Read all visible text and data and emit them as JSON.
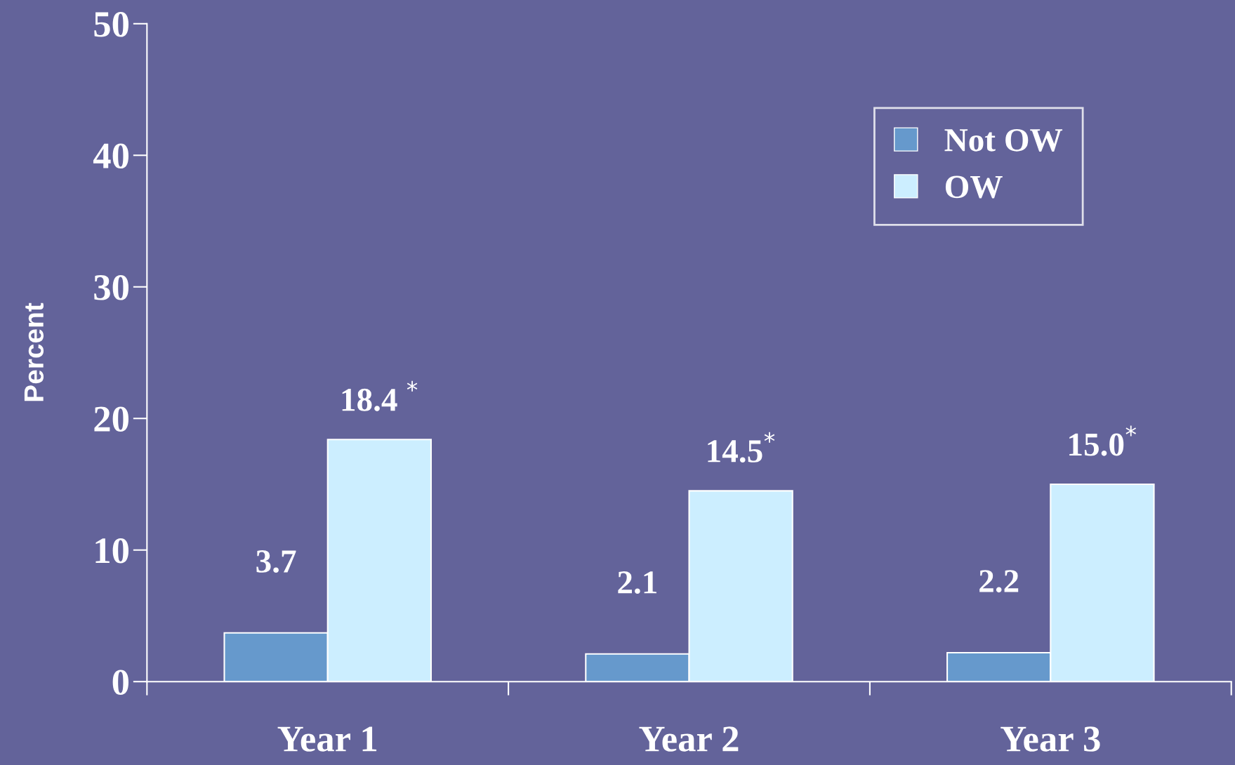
{
  "chart_data": {
    "type": "bar",
    "ylabel": "Percent",
    "categories": [
      "Year 1",
      "Year 2",
      "Year 3"
    ],
    "series": [
      {
        "name": "Not OW",
        "color": "#6699cc",
        "values": [
          3.7,
          2.1,
          2.2
        ],
        "value_labels": [
          "3.7",
          "2.1",
          "2.2"
        ]
      },
      {
        "name": "OW",
        "color": "#cceeff",
        "values": [
          18.4,
          14.5,
          15.0
        ],
        "value_labels": [
          "18.4 $^{*}$",
          "14.5$^{*}$",
          "15.0$^{*}$"
        ]
      }
    ],
    "ylim": [
      0,
      50
    ],
    "yticks": [
      0,
      10,
      20,
      30,
      40,
      50
    ],
    "grid": false,
    "legend": "top right"
  }
}
